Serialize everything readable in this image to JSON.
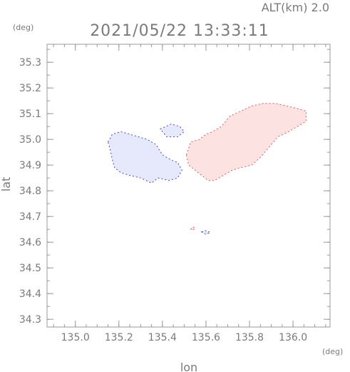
{
  "header": {
    "alt_label": "ALT(km)  2.0",
    "timestamp": "2021/05/22 13:33:11"
  },
  "axes": {
    "y_unit": "(deg)",
    "x_unit": "(deg)",
    "x_title": "lon",
    "y_title": "lat"
  },
  "chart_data": {
    "type": "heatmap",
    "xlim": [
      134.87,
      136.17
    ],
    "ylim": [
      34.27,
      35.37
    ],
    "x_ticks": [
      "135.0",
      "135.2",
      "135.4",
      "135.6",
      "135.8",
      "136.0"
    ],
    "y_ticks": [
      "34.3",
      "34.4",
      "34.5",
      "34.6",
      "34.7",
      "34.8",
      "34.9",
      "35.0",
      "35.1",
      "35.2",
      "35.3"
    ],
    "colors": {
      "negative_fill": "#e6e8fb",
      "positive_fill": "#fde2e2",
      "negative_edge": "#4848d8",
      "positive_edge": "#e05a6a"
    },
    "regions": [
      {
        "sign": "negative",
        "points": [
          [
            135.15,
            34.99
          ],
          [
            135.17,
            35.02
          ],
          [
            135.21,
            35.03
          ],
          [
            135.25,
            35.02
          ],
          [
            135.29,
            35.01
          ],
          [
            135.33,
            35.0
          ],
          [
            135.37,
            34.98
          ],
          [
            135.4,
            34.94
          ],
          [
            135.44,
            34.92
          ],
          [
            135.47,
            34.91
          ],
          [
            135.49,
            34.88
          ],
          [
            135.47,
            34.85
          ],
          [
            135.43,
            34.84
          ],
          [
            135.38,
            34.85
          ],
          [
            135.35,
            34.83
          ],
          [
            135.3,
            34.85
          ],
          [
            135.25,
            34.86
          ],
          [
            135.21,
            34.87
          ],
          [
            135.18,
            34.89
          ],
          [
            135.17,
            34.92
          ],
          [
            135.16,
            34.96
          ]
        ]
      },
      {
        "sign": "negative",
        "points": [
          [
            135.39,
            35.04
          ],
          [
            135.44,
            35.06
          ],
          [
            135.48,
            35.05
          ],
          [
            135.5,
            35.03
          ],
          [
            135.47,
            35.01
          ],
          [
            135.42,
            35.01
          ]
        ]
      },
      {
        "sign": "positive",
        "points": [
          [
            135.51,
            34.94
          ],
          [
            135.53,
            34.99
          ],
          [
            135.57,
            35.0
          ],
          [
            135.6,
            35.02
          ],
          [
            135.63,
            35.03
          ],
          [
            135.67,
            35.05
          ],
          [
            135.71,
            35.09
          ],
          [
            135.76,
            35.11
          ],
          [
            135.81,
            35.13
          ],
          [
            135.86,
            35.14
          ],
          [
            135.92,
            35.14
          ],
          [
            135.97,
            35.13
          ],
          [
            136.02,
            35.12
          ],
          [
            136.06,
            35.11
          ],
          [
            136.06,
            35.07
          ],
          [
            136.02,
            35.05
          ],
          [
            135.98,
            35.03
          ],
          [
            135.93,
            35.01
          ],
          [
            135.89,
            34.97
          ],
          [
            135.85,
            34.93
          ],
          [
            135.81,
            34.9
          ],
          [
            135.76,
            34.89
          ],
          [
            135.72,
            34.88
          ],
          [
            135.68,
            34.86
          ],
          [
            135.64,
            34.84
          ],
          [
            135.61,
            34.84
          ],
          [
            135.58,
            34.86
          ],
          [
            135.55,
            34.88
          ],
          [
            135.52,
            34.9
          ]
        ]
      },
      {
        "sign": "positive",
        "points": [
          [
            135.53,
            34.65
          ],
          [
            135.54,
            34.66
          ],
          [
            135.55,
            34.655
          ],
          [
            135.54,
            34.647
          ]
        ]
      },
      {
        "sign": "negative",
        "points": [
          [
            135.58,
            34.64
          ],
          [
            135.6,
            34.645
          ],
          [
            135.62,
            34.638
          ],
          [
            135.6,
            34.63
          ]
        ]
      }
    ]
  }
}
